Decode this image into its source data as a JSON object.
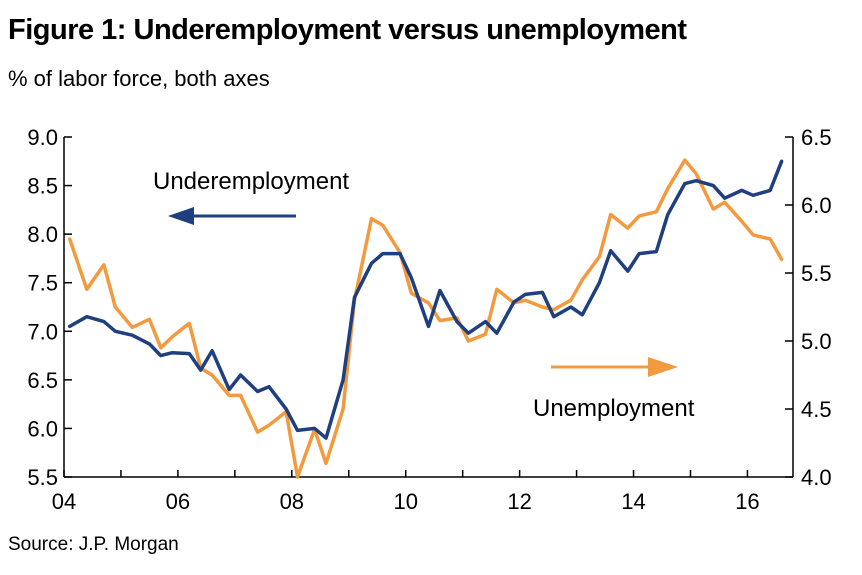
{
  "header": {
    "title": "Figure 1: Underemployment versus unemployment",
    "subtitle": "% of labor force, both axes"
  },
  "footer": {
    "source": "Source: J.P. Morgan"
  },
  "chart_data": {
    "type": "line",
    "title": "Figure 1: Underemployment versus unemployment",
    "subtitle": "% of labor force, both axes",
    "xlabel": "",
    "x_ticks": [
      "04",
      "06",
      "08",
      "10",
      "12",
      "14",
      "16"
    ],
    "x_range": [
      2004.0,
      2016.8
    ],
    "left_axis": {
      "ylim": [
        5.5,
        9.0
      ],
      "ticks": [
        "5.5",
        "6.0",
        "6.5",
        "7.0",
        "7.5",
        "8.0",
        "8.5",
        "9.0"
      ]
    },
    "right_axis": {
      "ylim": [
        4.0,
        6.5
      ],
      "ticks": [
        "4.0",
        "4.5",
        "5.0",
        "5.5",
        "6.0",
        "6.5"
      ]
    },
    "grid": false,
    "series": [
      {
        "name": "Underemployment",
        "axis": "left",
        "color": "#1f3f7f",
        "x": [
          2004.1,
          2004.4,
          2004.7,
          2004.9,
          2005.2,
          2005.5,
          2005.7,
          2005.9,
          2006.2,
          2006.4,
          2006.6,
          2006.9,
          2007.1,
          2007.4,
          2007.6,
          2007.9,
          2008.1,
          2008.4,
          2008.6,
          2008.9,
          2009.1,
          2009.4,
          2009.6,
          2009.9,
          2010.1,
          2010.4,
          2010.6,
          2010.9,
          2011.1,
          2011.4,
          2011.6,
          2011.9,
          2012.1,
          2012.4,
          2012.6,
          2012.9,
          2013.1,
          2013.4,
          2013.6,
          2013.9,
          2014.1,
          2014.4,
          2014.6,
          2014.9,
          2015.1,
          2015.4,
          2015.6,
          2015.9,
          2016.1,
          2016.4,
          2016.6
        ],
        "values": [
          7.05,
          7.15,
          7.1,
          7.0,
          6.96,
          6.87,
          6.75,
          6.78,
          6.77,
          6.6,
          6.8,
          6.4,
          6.55,
          6.38,
          6.43,
          6.2,
          5.98,
          6.0,
          5.9,
          6.5,
          7.35,
          7.7,
          7.8,
          7.8,
          7.55,
          7.05,
          7.42,
          7.1,
          6.98,
          7.1,
          6.98,
          7.3,
          7.38,
          7.4,
          7.15,
          7.25,
          7.17,
          7.5,
          7.83,
          7.62,
          7.8,
          7.82,
          8.2,
          8.52,
          8.55,
          8.5,
          8.37,
          8.45,
          8.4,
          8.45,
          8.75
        ]
      },
      {
        "name": "Unemployment",
        "axis": "right",
        "color": "#f39a3f",
        "x": [
          2004.1,
          2004.4,
          2004.7,
          2004.9,
          2005.2,
          2005.5,
          2005.7,
          2005.9,
          2006.2,
          2006.4,
          2006.6,
          2006.9,
          2007.1,
          2007.4,
          2007.6,
          2007.9,
          2008.1,
          2008.4,
          2008.6,
          2008.9,
          2009.1,
          2009.4,
          2009.6,
          2009.9,
          2010.1,
          2010.4,
          2010.6,
          2010.9,
          2011.1,
          2011.4,
          2011.6,
          2011.9,
          2012.1,
          2012.4,
          2012.6,
          2012.9,
          2013.1,
          2013.4,
          2013.6,
          2013.9,
          2014.1,
          2014.4,
          2014.6,
          2014.9,
          2015.1,
          2015.4,
          2015.6,
          2015.9,
          2016.1,
          2016.4,
          2016.6
        ],
        "values": [
          5.75,
          5.38,
          5.56,
          5.25,
          5.1,
          5.16,
          4.95,
          5.03,
          5.13,
          4.8,
          4.75,
          4.6,
          4.6,
          4.33,
          4.38,
          4.48,
          4.0,
          4.35,
          4.1,
          4.5,
          5.3,
          5.9,
          5.85,
          5.65,
          5.35,
          5.28,
          5.15,
          5.17,
          5.0,
          5.05,
          5.38,
          5.28,
          5.3,
          5.25,
          5.23,
          5.3,
          5.45,
          5.62,
          5.93,
          5.83,
          5.92,
          5.95,
          6.12,
          6.33,
          6.23,
          5.97,
          6.02,
          5.88,
          5.78,
          5.75,
          5.6
        ]
      }
    ],
    "annotations": [
      {
        "text": "Underemployment",
        "arrow": "left"
      },
      {
        "text": "Unemployment",
        "arrow": "right"
      }
    ]
  }
}
